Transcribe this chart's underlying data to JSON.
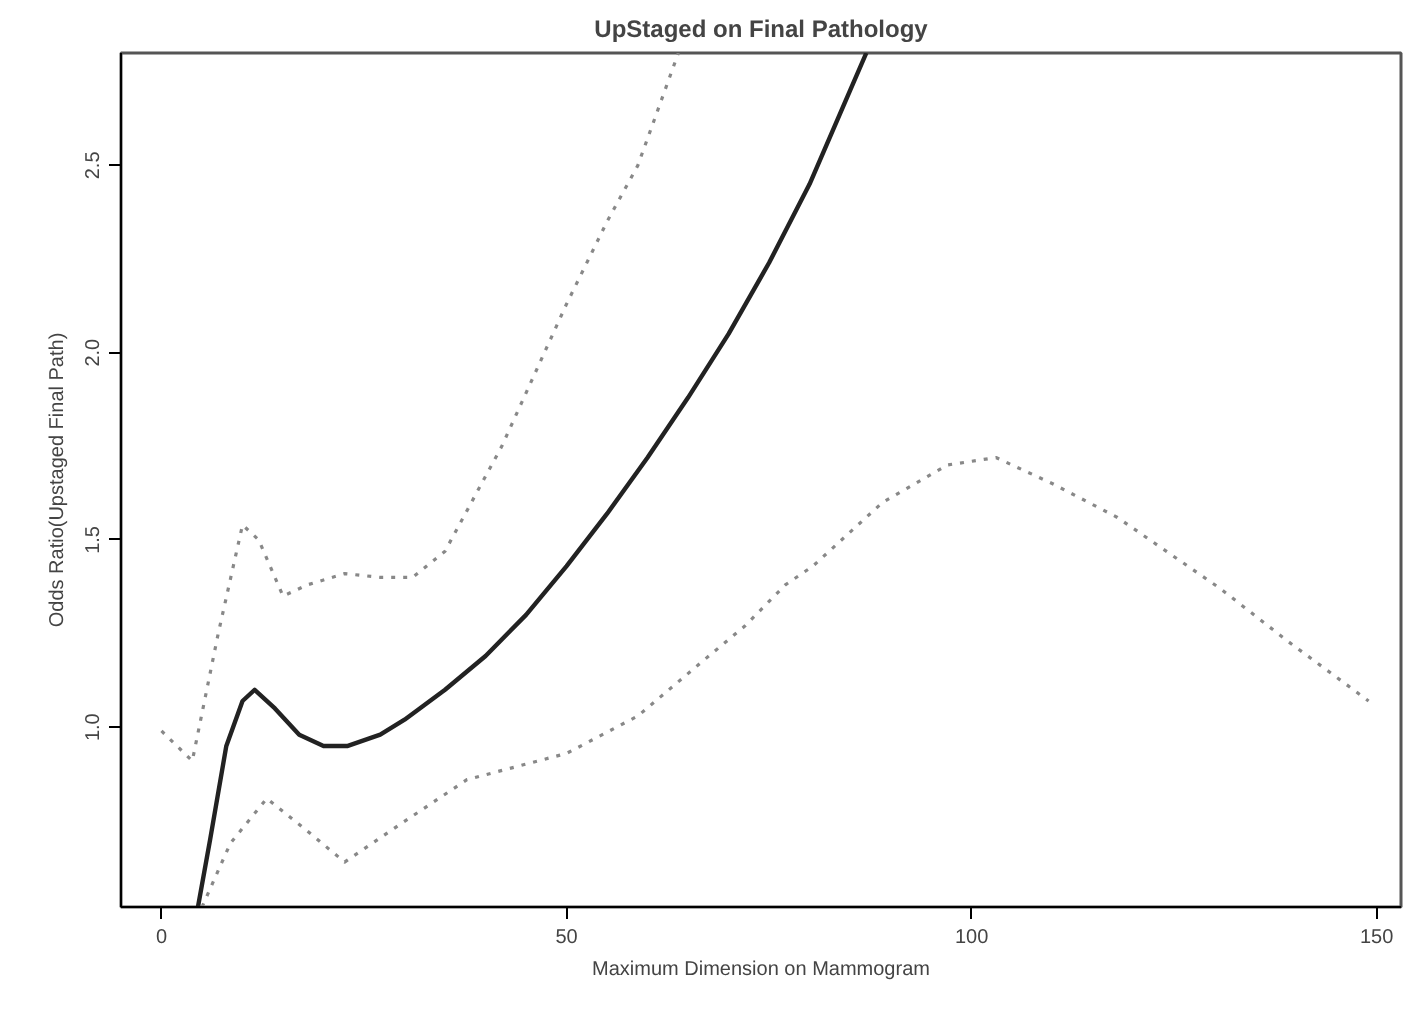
{
  "chart_data": {
    "type": "line",
    "title": "UpStaged on Final Pathology",
    "xlabel": "Maximum Dimension on Mammogram",
    "ylabel": "Odds Ratio(Upstaged Final Path)",
    "xlim": [
      -5,
      153
    ],
    "ylim": [
      0.52,
      2.8
    ],
    "xticks": [
      0,
      50,
      100,
      150
    ],
    "yticks": [
      {
        "value": 1,
        "label": "1.0"
      },
      {
        "value": 1.5,
        "label": "1.5"
      },
      {
        "value": 2,
        "label": "2.0"
      },
      {
        "value": 2.5,
        "label": "2.5"
      }
    ],
    "grid": false,
    "series": [
      {
        "color": "#222222",
        "line_style": "solid",
        "x": [
          4.5,
          6,
          8,
          10,
          11.5,
          14,
          17,
          20,
          23,
          27,
          30,
          35,
          40,
          45,
          50,
          55,
          60,
          65,
          70,
          75,
          80,
          85,
          87
        ],
        "values": [
          0.52,
          0.7,
          0.95,
          1.07,
          1.1,
          1.05,
          0.98,
          0.95,
          0.95,
          0.98,
          1.02,
          1.1,
          1.19,
          1.3,
          1.43,
          1.57,
          1.72,
          1.88,
          2.05,
          2.24,
          2.45,
          2.7,
          2.8
        ]
      },
      {
        "color": "#888888",
        "line_style": "dotted",
        "x": [
          0,
          3.8,
          7,
          10,
          12,
          15,
          18,
          22.6,
          27,
          31,
          35,
          42,
          50,
          55,
          58.8,
          63.8
        ],
        "values": [
          0.99,
          0.91,
          1.25,
          1.54,
          1.5,
          1.35,
          1.38,
          1.41,
          1.4,
          1.4,
          1.47,
          1.75,
          2.13,
          2.35,
          2.5,
          2.8
        ]
      },
      {
        "color": "#888888",
        "line_style": "dotted",
        "x": [
          5,
          8.5,
          13,
          17.6,
          22.6,
          29.4,
          37.7,
          50,
          58.8,
          67,
          72,
          77,
          80.4,
          89,
          97,
          103,
          110,
          118,
          130.7,
          139,
          149
        ],
        "values": [
          0.52,
          0.69,
          0.81,
          0.73,
          0.64,
          0.74,
          0.86,
          0.93,
          1.03,
          1.18,
          1.27,
          1.38,
          1.43,
          1.6,
          1.7,
          1.72,
          1.65,
          1.56,
          1.37,
          1.23,
          1.07
        ]
      }
    ]
  }
}
